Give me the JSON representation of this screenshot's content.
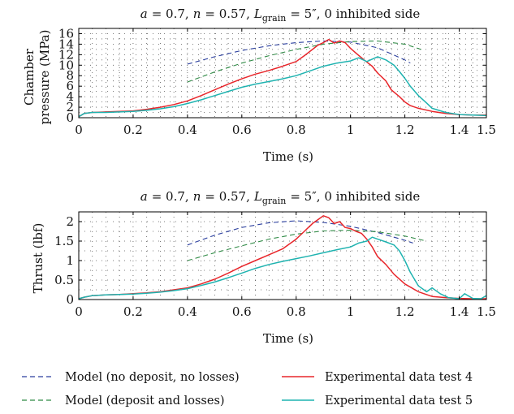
{
  "chart_data": [
    {
      "type": "line",
      "title": "a = 0.7, n = 0.57, L_grain = 5″, 0 inhibited side",
      "title_parts": {
        "a": "a",
        "a_val": "= 0.7,",
        "n": "n",
        "n_val": "= 0.57,",
        "L": "L",
        "grain": "grain",
        "rest": "= 5″, 0 inhibited side"
      },
      "xlabel": "Time (s)",
      "ylabel_line1": "Chamber",
      "ylabel_line2": "pressure (MPa)",
      "xlim": [
        0,
        1.5
      ],
      "ylim": [
        0,
        17
      ],
      "x_ticks": [
        0,
        0.2,
        0.4,
        0.6,
        0.8,
        1,
        1.2,
        1.4,
        1.5
      ],
      "x_tick_labels": [
        "0",
        "0.2",
        "0.4",
        "0.6",
        "0.8",
        "1",
        "1.2",
        "1.4",
        "1.5"
      ],
      "y_ticks": [
        0,
        2,
        4,
        6,
        8,
        10,
        12,
        14,
        16
      ],
      "y_tick_labels": [
        "0",
        "2",
        "4",
        "6",
        "8",
        "10",
        "12",
        "14",
        "16"
      ],
      "grid": "dotted",
      "series": [
        {
          "name": "Model (no deposit, no losses)",
          "style": "dashed",
          "color": "#2b3f9e",
          "x": [
            0.4,
            0.5,
            0.6,
            0.7,
            0.8,
            0.9,
            1.0,
            1.1,
            1.2,
            1.22
          ],
          "y": [
            10.2,
            11.6,
            12.8,
            13.7,
            14.3,
            14.6,
            14.4,
            13.3,
            11.0,
            10.4
          ]
        },
        {
          "name": "Model (deposit and losses)",
          "style": "dashed",
          "color": "#2f8a45",
          "x": [
            0.4,
            0.5,
            0.6,
            0.7,
            0.8,
            0.9,
            1.0,
            1.1,
            1.2,
            1.26
          ],
          "y": [
            6.8,
            8.7,
            10.4,
            11.8,
            13.0,
            14.0,
            14.5,
            14.6,
            14.0,
            13.0
          ]
        },
        {
          "name": "Experimental data test 4",
          "style": "solid",
          "color": "#e8262b",
          "x": [
            0,
            0.02,
            0.05,
            0.1,
            0.15,
            0.2,
            0.25,
            0.3,
            0.35,
            0.4,
            0.45,
            0.5,
            0.55,
            0.6,
            0.65,
            0.7,
            0.75,
            0.8,
            0.83,
            0.86,
            0.88,
            0.9,
            0.92,
            0.94,
            0.96,
            0.98,
            1.0,
            1.02,
            1.05,
            1.08,
            1.1,
            1.13,
            1.15,
            1.18,
            1.2,
            1.22,
            1.25,
            1.3,
            1.35,
            1.4,
            1.45,
            1.5
          ],
          "y": [
            0.2,
            0.8,
            1.0,
            1.1,
            1.2,
            1.3,
            1.6,
            2.0,
            2.5,
            3.2,
            4.2,
            5.3,
            6.4,
            7.4,
            8.3,
            9.0,
            9.8,
            10.7,
            11.8,
            13.0,
            13.8,
            14.3,
            14.9,
            14.2,
            14.6,
            14.3,
            13.2,
            12.3,
            11.0,
            9.8,
            8.5,
            7.0,
            5.3,
            4.0,
            3.0,
            2.3,
            1.8,
            1.2,
            0.8,
            0.6,
            0.5,
            0.5
          ]
        },
        {
          "name": "Experimental data test 5",
          "style": "solid",
          "color": "#1fb3b0",
          "x": [
            0,
            0.02,
            0.05,
            0.1,
            0.15,
            0.2,
            0.25,
            0.3,
            0.35,
            0.4,
            0.45,
            0.5,
            0.55,
            0.6,
            0.65,
            0.7,
            0.75,
            0.8,
            0.85,
            0.9,
            0.95,
            1.0,
            1.03,
            1.06,
            1.1,
            1.13,
            1.16,
            1.18,
            1.2,
            1.22,
            1.25,
            1.28,
            1.3,
            1.35,
            1.4,
            1.45,
            1.5
          ],
          "y": [
            0.2,
            0.8,
            1.0,
            1.0,
            1.1,
            1.2,
            1.4,
            1.7,
            2.1,
            2.7,
            3.4,
            4.2,
            5.0,
            5.8,
            6.4,
            6.9,
            7.4,
            8.0,
            8.9,
            9.8,
            10.4,
            10.8,
            11.4,
            10.7,
            11.6,
            11.0,
            10.0,
            8.8,
            7.5,
            6.0,
            4.2,
            2.8,
            1.8,
            1.0,
            0.6,
            0.5,
            0.4
          ]
        }
      ]
    },
    {
      "type": "line",
      "title": "a = 0.7, n = 0.57, L_grain = 5″, 0 inhibited side",
      "title_parts": {
        "a": "a",
        "a_val": "= 0.7,",
        "n": "n",
        "n_val": "= 0.57,",
        "L": "L",
        "grain": "grain",
        "rest": "= 5″, 0 inhibited side"
      },
      "xlabel": "Time (s)",
      "ylabel": "Thrust (lbf)",
      "xlim": [
        0,
        1.5
      ],
      "ylim": [
        0,
        2.25
      ],
      "x_ticks": [
        0,
        0.2,
        0.4,
        0.6,
        0.8,
        1,
        1.2,
        1.4,
        1.5
      ],
      "x_tick_labels": [
        "0",
        "0.2",
        "0.4",
        "0.6",
        "0.8",
        "1",
        "1.2",
        "1.4",
        "1.5"
      ],
      "y_ticks": [
        0,
        0.5,
        1,
        1.5,
        2
      ],
      "y_tick_labels": [
        "0",
        "0.5",
        "1",
        "1.5",
        "2"
      ],
      "grid": "dotted",
      "series": [
        {
          "name": "Model (no deposit, no losses)",
          "style": "dashed",
          "color": "#2b3f9e",
          "x": [
            0.4,
            0.5,
            0.6,
            0.7,
            0.8,
            0.9,
            1.0,
            1.1,
            1.2,
            1.23
          ],
          "y": [
            1.4,
            1.65,
            1.85,
            1.97,
            2.02,
            1.98,
            1.88,
            1.72,
            1.52,
            1.45
          ]
        },
        {
          "name": "Model (deposit and losses)",
          "style": "dashed",
          "color": "#2f8a45",
          "x": [
            0.4,
            0.5,
            0.6,
            0.7,
            0.8,
            0.9,
            1.0,
            1.1,
            1.2,
            1.28
          ],
          "y": [
            1.0,
            1.2,
            1.38,
            1.55,
            1.68,
            1.76,
            1.78,
            1.74,
            1.63,
            1.5
          ]
        },
        {
          "name": "Experimental data test 4",
          "style": "solid",
          "color": "#e8262b",
          "x": [
            0,
            0.02,
            0.05,
            0.1,
            0.15,
            0.2,
            0.25,
            0.3,
            0.35,
            0.4,
            0.45,
            0.5,
            0.55,
            0.6,
            0.65,
            0.7,
            0.75,
            0.8,
            0.83,
            0.86,
            0.88,
            0.9,
            0.92,
            0.94,
            0.96,
            0.98,
            1.0,
            1.02,
            1.04,
            1.06,
            1.08,
            1.1,
            1.13,
            1.16,
            1.2,
            1.25,
            1.3,
            1.35,
            1.4,
            1.45,
            1.5
          ],
          "y": [
            0.02,
            0.06,
            0.1,
            0.12,
            0.13,
            0.15,
            0.17,
            0.2,
            0.25,
            0.3,
            0.4,
            0.52,
            0.68,
            0.85,
            1.0,
            1.15,
            1.3,
            1.55,
            1.75,
            1.95,
            2.05,
            2.15,
            2.1,
            1.95,
            2.0,
            1.85,
            1.82,
            1.75,
            1.7,
            1.55,
            1.35,
            1.1,
            0.9,
            0.65,
            0.4,
            0.2,
            0.08,
            0.05,
            0.03,
            0.02,
            0.02
          ]
        },
        {
          "name": "Experimental data test 5",
          "style": "solid",
          "color": "#1fb3b0",
          "x": [
            0,
            0.02,
            0.05,
            0.1,
            0.15,
            0.2,
            0.25,
            0.3,
            0.35,
            0.4,
            0.45,
            0.5,
            0.55,
            0.6,
            0.65,
            0.7,
            0.75,
            0.8,
            0.85,
            0.9,
            0.95,
            1.0,
            1.03,
            1.06,
            1.08,
            1.1,
            1.13,
            1.16,
            1.18,
            1.2,
            1.22,
            1.25,
            1.28,
            1.3,
            1.33,
            1.36,
            1.4,
            1.42,
            1.45,
            1.48,
            1.5
          ],
          "y": [
            0.02,
            0.06,
            0.1,
            0.12,
            0.13,
            0.14,
            0.16,
            0.19,
            0.23,
            0.28,
            0.36,
            0.45,
            0.56,
            0.68,
            0.8,
            0.9,
            0.98,
            1.05,
            1.12,
            1.2,
            1.28,
            1.35,
            1.45,
            1.5,
            1.6,
            1.55,
            1.48,
            1.4,
            1.25,
            1.0,
            0.7,
            0.35,
            0.2,
            0.3,
            0.15,
            0.05,
            0.02,
            0.15,
            0.03,
            0.02,
            0.1
          ]
        }
      ]
    }
  ],
  "legend": {
    "placement": "bottom",
    "items": [
      {
        "label": "Model (no deposit, no losses)",
        "style": "dashed",
        "color": "#2b3f9e"
      },
      {
        "label": "Experimental data test 4",
        "style": "solid",
        "color": "#e8262b"
      },
      {
        "label": "Model (deposit and losses)",
        "style": "dashed",
        "color": "#2f8a45"
      },
      {
        "label": "Experimental data test 5",
        "style": "solid",
        "color": "#1fb3b0"
      }
    ]
  }
}
